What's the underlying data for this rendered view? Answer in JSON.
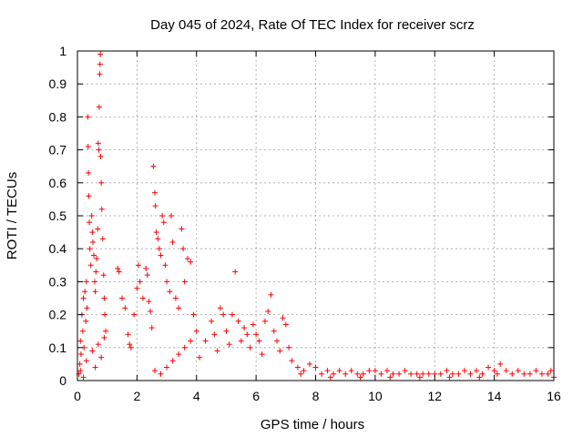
{
  "chart_data": {
    "type": "scatter",
    "title": "Day 045 of 2024, Rate Of TEC Index for receiver scrz",
    "xlabel": "GPS time / hours",
    "ylabel": "ROTI / TECUs",
    "xlim": [
      0,
      16
    ],
    "ylim": [
      0,
      1
    ],
    "xticks": [
      0,
      2,
      4,
      6,
      8,
      10,
      12,
      14,
      16
    ],
    "xtick_labels": [
      "0",
      "2",
      "4",
      "6",
      "8",
      "10",
      "12",
      "14",
      "16"
    ],
    "yticks": [
      0,
      0.1,
      0.2,
      0.3,
      0.4,
      0.5,
      0.6,
      0.7,
      0.8,
      0.9,
      1
    ],
    "ytick_labels": [
      "0",
      "0.1",
      "0.2",
      "0.3",
      "0.4",
      "0.5",
      "0.6",
      "0.7",
      "0.8",
      "0.9",
      "1"
    ],
    "grid": true,
    "marker": "+",
    "color": "#ff0000",
    "series": [
      {
        "name": "ROTI",
        "points": [
          [
            0.05,
            0.02
          ],
          [
            0.08,
            0.05
          ],
          [
            0.1,
            0.12
          ],
          [
            0.12,
            0.08
          ],
          [
            0.15,
            0.2
          ],
          [
            0.18,
            0.15
          ],
          [
            0.2,
            0.25
          ],
          [
            0.22,
            0.1
          ],
          [
            0.25,
            0.27
          ],
          [
            0.28,
            0.18
          ],
          [
            0.3,
            0.3
          ],
          [
            0.32,
            0.22
          ],
          [
            0.35,
            0.8
          ],
          [
            0.36,
            0.71
          ],
          [
            0.37,
            0.63
          ],
          [
            0.38,
            0.56
          ],
          [
            0.4,
            0.48
          ],
          [
            0.42,
            0.4
          ],
          [
            0.45,
            0.35
          ],
          [
            0.48,
            0.5
          ],
          [
            0.5,
            0.45
          ],
          [
            0.52,
            0.42
          ],
          [
            0.55,
            0.38
          ],
          [
            0.58,
            0.3
          ],
          [
            0.6,
            0.27
          ],
          [
            0.62,
            0.33
          ],
          [
            0.65,
            0.37
          ],
          [
            0.68,
            0.46
          ],
          [
            0.7,
            0.72
          ],
          [
            0.72,
            0.7
          ],
          [
            0.73,
            0.83
          ],
          [
            0.75,
            0.93
          ],
          [
            0.76,
            0.96
          ],
          [
            0.77,
            0.99
          ],
          [
            0.78,
            0.68
          ],
          [
            0.8,
            0.6
          ],
          [
            0.82,
            0.52
          ],
          [
            0.85,
            0.43
          ],
          [
            0.88,
            0.32
          ],
          [
            0.9,
            0.25
          ],
          [
            0.92,
            0.2
          ],
          [
            0.95,
            0.15
          ],
          [
            0.1,
            0.03
          ],
          [
            0.3,
            0.06
          ],
          [
            0.5,
            0.09
          ],
          [
            0.7,
            0.11
          ],
          [
            0.9,
            0.13
          ],
          [
            0.2,
            0.01
          ],
          [
            0.6,
            0.04
          ],
          [
            0.8,
            0.07
          ],
          [
            1.35,
            0.34
          ],
          [
            1.4,
            0.33
          ],
          [
            1.5,
            0.25
          ],
          [
            1.6,
            0.22
          ],
          [
            1.7,
            0.14
          ],
          [
            1.75,
            0.11
          ],
          [
            1.8,
            0.1
          ],
          [
            1.9,
            0.2
          ],
          [
            2.0,
            0.28
          ],
          [
            2.05,
            0.35
          ],
          [
            2.1,
            0.3
          ],
          [
            2.2,
            0.25
          ],
          [
            2.3,
            0.34
          ],
          [
            2.35,
            0.32
          ],
          [
            2.4,
            0.24
          ],
          [
            2.45,
            0.21
          ],
          [
            2.5,
            0.16
          ],
          [
            2.55,
            0.65
          ],
          [
            2.6,
            0.57
          ],
          [
            2.62,
            0.53
          ],
          [
            2.65,
            0.45
          ],
          [
            2.7,
            0.43
          ],
          [
            2.75,
            0.4
          ],
          [
            2.8,
            0.38
          ],
          [
            2.85,
            0.5
          ],
          [
            2.9,
            0.48
          ],
          [
            2.95,
            0.35
          ],
          [
            3.0,
            0.3
          ],
          [
            3.1,
            0.27
          ],
          [
            3.15,
            0.5
          ],
          [
            3.2,
            0.42
          ],
          [
            3.3,
            0.25
          ],
          [
            3.4,
            0.22
          ],
          [
            3.5,
            0.46
          ],
          [
            3.55,
            0.4
          ],
          [
            3.6,
            0.3
          ],
          [
            3.7,
            0.37
          ],
          [
            3.8,
            0.36
          ],
          [
            3.9,
            0.2
          ],
          [
            4.0,
            0.15
          ],
          [
            2.6,
            0.03
          ],
          [
            2.8,
            0.02
          ],
          [
            3.0,
            0.04
          ],
          [
            3.2,
            0.06
          ],
          [
            3.4,
            0.08
          ],
          [
            3.6,
            0.1
          ],
          [
            3.8,
            0.12
          ],
          [
            4.1,
            0.07
          ],
          [
            4.3,
            0.12
          ],
          [
            4.5,
            0.18
          ],
          [
            4.6,
            0.14
          ],
          [
            4.7,
            0.09
          ],
          [
            4.8,
            0.22
          ],
          [
            4.9,
            0.2
          ],
          [
            5.0,
            0.15
          ],
          [
            5.1,
            0.11
          ],
          [
            5.2,
            0.2
          ],
          [
            5.3,
            0.33
          ],
          [
            5.4,
            0.18
          ],
          [
            5.5,
            0.12
          ],
          [
            5.6,
            0.16
          ],
          [
            5.7,
            0.14
          ],
          [
            5.8,
            0.1
          ],
          [
            5.9,
            0.17
          ],
          [
            6.0,
            0.14
          ],
          [
            6.1,
            0.12
          ],
          [
            6.2,
            0.08
          ],
          [
            6.3,
            0.18
          ],
          [
            6.4,
            0.21
          ],
          [
            6.5,
            0.26
          ],
          [
            6.6,
            0.15
          ],
          [
            6.7,
            0.12
          ],
          [
            6.8,
            0.09
          ],
          [
            6.9,
            0.19
          ],
          [
            7.0,
            0.17
          ],
          [
            7.1,
            0.1
          ],
          [
            7.2,
            0.06
          ],
          [
            7.4,
            0.04
          ],
          [
            7.6,
            0.03
          ],
          [
            7.8,
            0.05
          ],
          [
            8.0,
            0.04
          ],
          [
            8.2,
            0.02
          ],
          [
            8.4,
            0.03
          ],
          [
            8.6,
            0.02
          ],
          [
            8.8,
            0.03
          ],
          [
            9.0,
            0.02
          ],
          [
            9.2,
            0.03
          ],
          [
            9.4,
            0.02
          ],
          [
            9.6,
            0.02
          ],
          [
            9.8,
            0.03
          ],
          [
            10.0,
            0.03
          ],
          [
            10.2,
            0.02
          ],
          [
            10.4,
            0.03
          ],
          [
            10.6,
            0.02
          ],
          [
            10.8,
            0.02
          ],
          [
            11.0,
            0.03
          ],
          [
            11.2,
            0.02
          ],
          [
            11.4,
            0.02
          ],
          [
            11.6,
            0.02
          ],
          [
            11.8,
            0.02
          ],
          [
            12.0,
            0.02
          ],
          [
            12.2,
            0.02
          ],
          [
            12.4,
            0.03
          ],
          [
            12.6,
            0.02
          ],
          [
            12.8,
            0.02
          ],
          [
            13.0,
            0.03
          ],
          [
            13.2,
            0.02
          ],
          [
            13.4,
            0.03
          ],
          [
            13.6,
            0.02
          ],
          [
            13.8,
            0.04
          ],
          [
            14.0,
            0.03
          ],
          [
            14.2,
            0.05
          ],
          [
            14.4,
            0.03
          ],
          [
            14.6,
            0.02
          ],
          [
            14.8,
            0.03
          ],
          [
            15.0,
            0.02
          ],
          [
            15.2,
            0.02
          ],
          [
            15.4,
            0.03
          ],
          [
            15.6,
            0.02
          ],
          [
            15.8,
            0.02
          ],
          [
            16.0,
            0.01
          ],
          [
            15.9,
            0.03
          ],
          [
            14.1,
            0.02
          ],
          [
            13.5,
            0.01
          ],
          [
            12.5,
            0.01
          ],
          [
            11.5,
            0.01
          ],
          [
            10.5,
            0.01
          ],
          [
            9.5,
            0.01
          ],
          [
            8.5,
            0.01
          ],
          [
            7.5,
            0.02
          ]
        ]
      }
    ]
  }
}
